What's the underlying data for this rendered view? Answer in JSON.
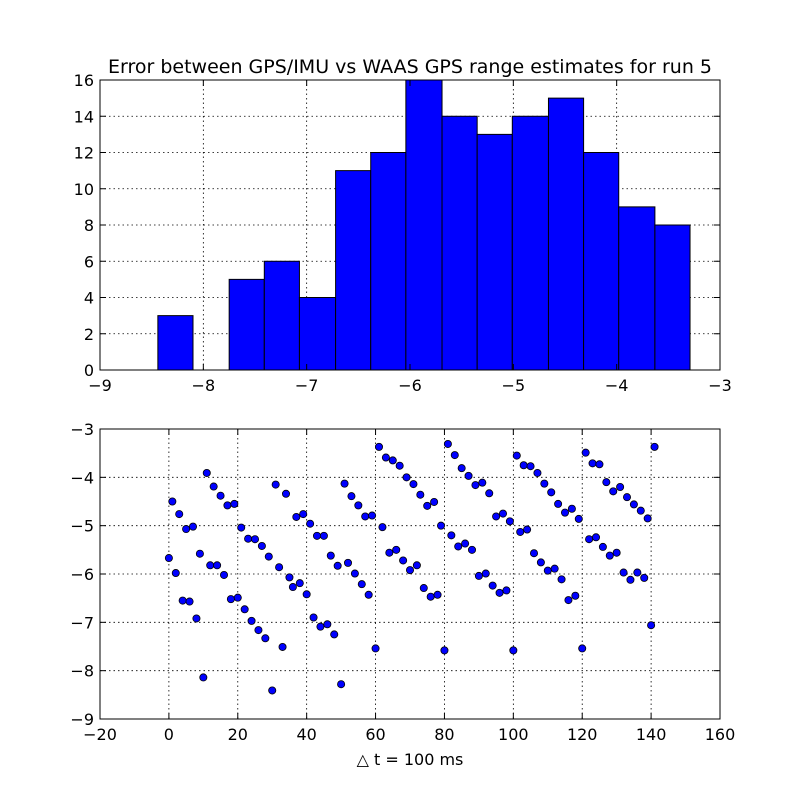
{
  "chart_data": [
    {
      "type": "bar",
      "title": "Error between GPS/IMU vs WAAS GPS range estimates for run 5",
      "xlabel": "",
      "ylabel": "",
      "xlim": [
        -9,
        -3
      ],
      "ylim": [
        0,
        16
      ],
      "xticks": [
        -9,
        -8,
        -7,
        -6,
        -5,
        -4,
        -3
      ],
      "yticks": [
        0,
        2,
        4,
        6,
        8,
        10,
        12,
        14,
        16
      ],
      "grid": true,
      "color": "#0000ff",
      "bins": [
        {
          "start": -8.44,
          "end": -8.1,
          "count": 3
        },
        {
          "start": -8.1,
          "end": -7.75,
          "count": 0
        },
        {
          "start": -7.75,
          "end": -7.41,
          "count": 5
        },
        {
          "start": -7.41,
          "end": -7.07,
          "count": 6
        },
        {
          "start": -7.07,
          "end": -6.72,
          "count": 4
        },
        {
          "start": -6.72,
          "end": -6.38,
          "count": 11
        },
        {
          "start": -6.38,
          "end": -6.04,
          "count": 12
        },
        {
          "start": -6.04,
          "end": -5.69,
          "count": 16
        },
        {
          "start": -5.69,
          "end": -5.35,
          "count": 14
        },
        {
          "start": -5.35,
          "end": -5.01,
          "count": 13
        },
        {
          "start": -5.01,
          "end": -4.66,
          "count": 14
        },
        {
          "start": -4.66,
          "end": -4.32,
          "count": 15
        },
        {
          "start": -4.32,
          "end": -3.98,
          "count": 12
        },
        {
          "start": -3.98,
          "end": -3.63,
          "count": 9
        },
        {
          "start": -3.63,
          "end": -3.29,
          "count": 8
        }
      ]
    },
    {
      "type": "scatter",
      "title": "",
      "xlabel": "△ t = 100 ms",
      "ylabel": "",
      "xlim": [
        -20,
        160
      ],
      "ylim": [
        -9,
        -3
      ],
      "xticks": [
        -20,
        0,
        20,
        40,
        60,
        80,
        100,
        120,
        140,
        160
      ],
      "yticks": [
        -9,
        -8,
        -7,
        -6,
        -5,
        -4,
        -3
      ],
      "grid": true,
      "color": "#0000ff",
      "points": [
        [
          0,
          -5.67
        ],
        [
          1,
          -4.5
        ],
        [
          2,
          -5.98
        ],
        [
          3,
          -4.76
        ],
        [
          4,
          -6.55
        ],
        [
          5,
          -5.07
        ],
        [
          6,
          -6.57
        ],
        [
          7,
          -5.02
        ],
        [
          8,
          -6.92
        ],
        [
          9,
          -5.58
        ],
        [
          10,
          -8.14
        ],
        [
          11,
          -3.91
        ],
        [
          12,
          -5.82
        ],
        [
          13,
          -4.19
        ],
        [
          14,
          -5.82
        ],
        [
          15,
          -4.38
        ],
        [
          16,
          -6.02
        ],
        [
          17,
          -4.58
        ],
        [
          18,
          -6.52
        ],
        [
          19,
          -4.55
        ],
        [
          20,
          -6.49
        ],
        [
          21,
          -5.04
        ],
        [
          22,
          -6.73
        ],
        [
          23,
          -5.27
        ],
        [
          24,
          -6.97
        ],
        [
          25,
          -5.28
        ],
        [
          26,
          -7.16
        ],
        [
          27,
          -5.42
        ],
        [
          28,
          -7.33
        ],
        [
          29,
          -5.64
        ],
        [
          30,
          -8.41
        ],
        [
          31,
          -4.15
        ],
        [
          32,
          -5.86
        ],
        [
          33,
          -7.51
        ],
        [
          34,
          -4.34
        ],
        [
          35,
          -6.07
        ],
        [
          36,
          -6.27
        ],
        [
          37,
          -4.82
        ],
        [
          38,
          -6.19
        ],
        [
          39,
          -4.76
        ],
        [
          40,
          -6.42
        ],
        [
          41,
          -4.96
        ],
        [
          42,
          -6.9
        ],
        [
          43,
          -5.21
        ],
        [
          44,
          -7.09
        ],
        [
          45,
          -5.21
        ],
        [
          46,
          -7.04
        ],
        [
          47,
          -5.62
        ],
        [
          48,
          -7.25
        ],
        [
          49,
          -5.83
        ],
        [
          50,
          -8.28
        ],
        [
          51,
          -4.13
        ],
        [
          52,
          -5.77
        ],
        [
          53,
          -4.39
        ],
        [
          54,
          -5.99
        ],
        [
          55,
          -4.58
        ],
        [
          56,
          -6.21
        ],
        [
          57,
          -4.81
        ],
        [
          58,
          -6.43
        ],
        [
          59,
          -4.79
        ],
        [
          60,
          -7.54
        ],
        [
          61,
          -3.37
        ],
        [
          62,
          -5.03
        ],
        [
          63,
          -3.59
        ],
        [
          64,
          -5.56
        ],
        [
          65,
          -3.65
        ],
        [
          66,
          -5.5
        ],
        [
          67,
          -3.76
        ],
        [
          68,
          -5.72
        ],
        [
          69,
          -4.0
        ],
        [
          70,
          -5.92
        ],
        [
          71,
          -4.14
        ],
        [
          72,
          -5.82
        ],
        [
          73,
          -4.36
        ],
        [
          74,
          -6.29
        ],
        [
          75,
          -4.59
        ],
        [
          76,
          -6.47
        ],
        [
          77,
          -4.51
        ],
        [
          78,
          -6.43
        ],
        [
          79,
          -5.0
        ],
        [
          80,
          -7.58
        ],
        [
          81,
          -3.31
        ],
        [
          82,
          -5.2
        ],
        [
          83,
          -3.54
        ],
        [
          84,
          -5.43
        ],
        [
          85,
          -3.81
        ],
        [
          86,
          -5.37
        ],
        [
          87,
          -3.97
        ],
        [
          88,
          -5.5
        ],
        [
          89,
          -4.16
        ],
        [
          90,
          -6.04
        ],
        [
          91,
          -4.11
        ],
        [
          92,
          -5.99
        ],
        [
          93,
          -4.33
        ],
        [
          94,
          -6.24
        ],
        [
          95,
          -4.81
        ],
        [
          96,
          -6.39
        ],
        [
          97,
          -4.75
        ],
        [
          98,
          -6.34
        ],
        [
          99,
          -4.91
        ],
        [
          100,
          -7.58
        ],
        [
          101,
          -3.55
        ],
        [
          102,
          -5.13
        ],
        [
          103,
          -3.75
        ],
        [
          104,
          -5.08
        ],
        [
          105,
          -3.77
        ],
        [
          106,
          -5.57
        ],
        [
          107,
          -3.91
        ],
        [
          108,
          -5.76
        ],
        [
          109,
          -4.13
        ],
        [
          110,
          -5.93
        ],
        [
          111,
          -4.31
        ],
        [
          112,
          -5.89
        ],
        [
          113,
          -4.55
        ],
        [
          114,
          -6.11
        ],
        [
          115,
          -4.73
        ],
        [
          116,
          -6.54
        ],
        [
          117,
          -4.65
        ],
        [
          118,
          -6.45
        ],
        [
          119,
          -4.86
        ],
        [
          120,
          -7.54
        ],
        [
          121,
          -3.49
        ],
        [
          122,
          -5.28
        ],
        [
          123,
          -3.71
        ],
        [
          124,
          -5.24
        ],
        [
          125,
          -3.73
        ],
        [
          126,
          -5.44
        ],
        [
          127,
          -4.1
        ],
        [
          128,
          -5.62
        ],
        [
          129,
          -4.29
        ],
        [
          130,
          -5.56
        ],
        [
          131,
          -4.2
        ],
        [
          132,
          -5.97
        ],
        [
          133,
          -4.41
        ],
        [
          134,
          -6.12
        ],
        [
          135,
          -4.56
        ],
        [
          136,
          -5.97
        ],
        [
          137,
          -4.69
        ],
        [
          138,
          -6.08
        ],
        [
          139,
          -4.85
        ],
        [
          140,
          -7.06
        ],
        [
          141,
          -3.37
        ]
      ]
    }
  ]
}
